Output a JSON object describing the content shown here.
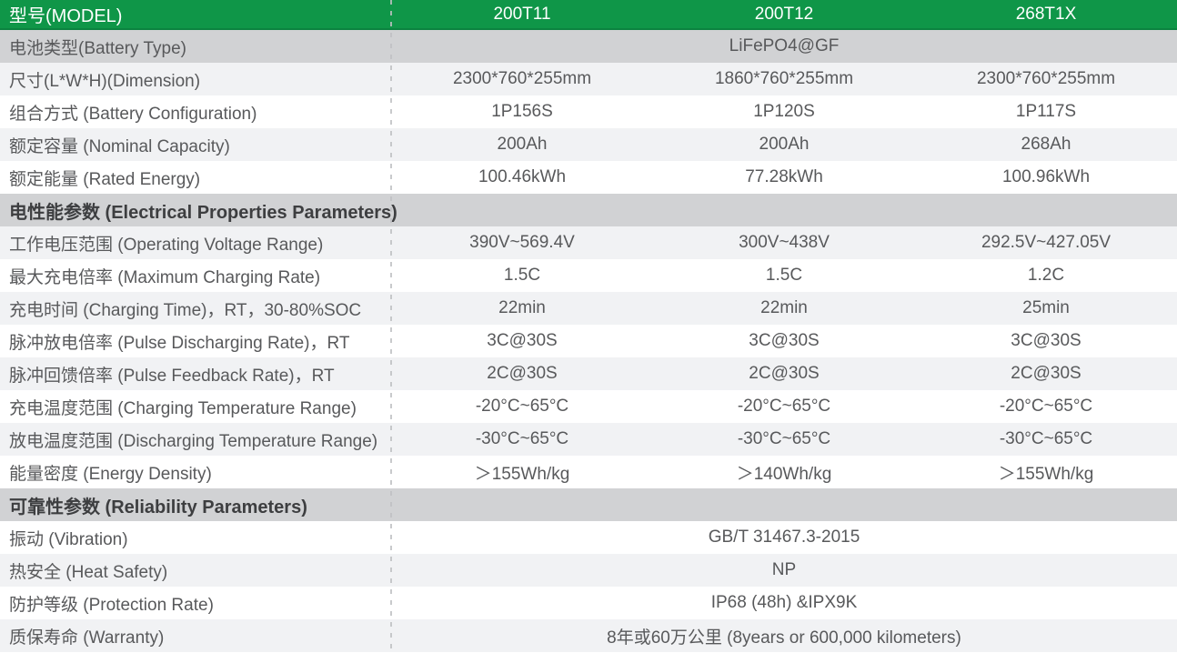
{
  "colors": {
    "header_green": "#0f9648",
    "header_green_border": "#0b8340",
    "section_gray": "#d1d2d4",
    "row_light": "#f1f2f4",
    "row_white": "#ffffff",
    "label_text": "#58595b",
    "section_text": "#3d3e40",
    "header_text": "#ffffff",
    "divider_dash": "#bfc0c3"
  },
  "table": {
    "header": {
      "model_label": "型号(MODEL)",
      "models": [
        "200T11",
        "200T12",
        "268T1X"
      ]
    },
    "rows": [
      {
        "kind": "span",
        "bg": "dark",
        "label": "电池类型(Battery Type)",
        "value": "LiFePO4@GF"
      },
      {
        "kind": "data",
        "bg": "light",
        "label": "尺寸(L*W*H)(Dimension)",
        "values": [
          "2300*760*255mm",
          "1860*760*255mm",
          "2300*760*255mm"
        ]
      },
      {
        "kind": "data",
        "bg": "white",
        "label": "组合方式 (Battery Configuration)",
        "values": [
          "1P156S",
          "1P120S",
          "1P117S"
        ]
      },
      {
        "kind": "data",
        "bg": "light",
        "label": "额定容量 (Nominal Capacity)",
        "values": [
          "200Ah",
          "200Ah",
          "268Ah"
        ]
      },
      {
        "kind": "data",
        "bg": "white",
        "label": "额定能量 (Rated Energy)",
        "values": [
          "100.46kWh",
          "77.28kWh",
          "100.96kWh"
        ]
      },
      {
        "kind": "section",
        "label": "电性能参数 (Electrical Properties Parameters)"
      },
      {
        "kind": "data",
        "bg": "light",
        "label": "工作电压范围 (Operating Voltage Range)",
        "values": [
          "390V~569.4V",
          "300V~438V",
          "292.5V~427.05V"
        ]
      },
      {
        "kind": "data",
        "bg": "white",
        "label": "最大充电倍率 (Maximum Charging Rate)",
        "values": [
          "1.5C",
          "1.5C",
          "1.2C"
        ]
      },
      {
        "kind": "data",
        "bg": "light",
        "label": "充电时间 (Charging Time)，RT，30-80%SOC",
        "values": [
          "22min",
          "22min",
          "25min"
        ]
      },
      {
        "kind": "data",
        "bg": "white",
        "label": "脉冲放电倍率 (Pulse Discharging Rate)，RT",
        "values": [
          "3C@30S",
          "3C@30S",
          "3C@30S"
        ]
      },
      {
        "kind": "data",
        "bg": "light",
        "label": "脉冲回馈倍率 (Pulse Feedback Rate)，RT",
        "values": [
          "2C@30S",
          "2C@30S",
          "2C@30S"
        ]
      },
      {
        "kind": "data",
        "bg": "white",
        "label": "充电温度范围 (Charging Temperature Range)",
        "values": [
          "-20°C~65°C",
          "-20°C~65°C",
          "-20°C~65°C"
        ]
      },
      {
        "kind": "data",
        "bg": "light",
        "label": "放电温度范围 (Discharging Temperature Range)",
        "values": [
          "-30°C~65°C",
          "-30°C~65°C",
          "-30°C~65°C"
        ]
      },
      {
        "kind": "data",
        "bg": "white",
        "label": "能量密度 (Energy Density)",
        "values": [
          "＞155Wh/kg",
          "＞140Wh/kg",
          "＞155Wh/kg"
        ]
      },
      {
        "kind": "section",
        "label": "可靠性参数 (Reliability Parameters)"
      },
      {
        "kind": "span",
        "bg": "white",
        "label": "振动 (Vibration)",
        "value": "GB/T 31467.3-2015"
      },
      {
        "kind": "span",
        "bg": "light",
        "label": "热安全 (Heat Safety)",
        "value": "NP"
      },
      {
        "kind": "span",
        "bg": "white",
        "label": "防护等级 (Protection Rate)",
        "value": "IP68 (48h) &IPX9K"
      },
      {
        "kind": "span",
        "bg": "light",
        "label": "质保寿命 (Warranty)",
        "value": "8年或60万公里 (8years or 600,000 kilometers)"
      }
    ]
  }
}
